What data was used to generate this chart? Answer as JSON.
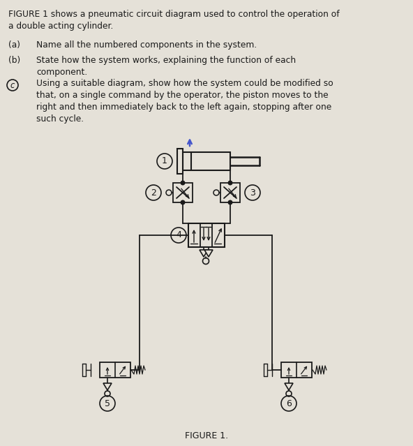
{
  "bg_color": "#e5e1d8",
  "line_color": "#1a1a1a",
  "text_color": "#1a1a1a",
  "figsize": [
    5.92,
    6.39
  ],
  "dpi": 100,
  "title": "FIGURE 1.",
  "header": "FIGURE 1 shows a pneumatic circuit diagram used to control the operation of\na double acting cylinder.",
  "qa_a_label": "(a)",
  "qa_a_text": "Name all the numbered components in the system.",
  "qa_b_label": "(b)",
  "qa_b_text": "State how the system works, explaining the function of each\ncomponent.",
  "qa_c_text": "Using a suitable diagram, show how the system could be modified so\nthat, on a single command by the operator, the piston moves to the\nright and then immediately back to the left again, stopping after one\nsuch cycle.",
  "blue_arrow_color": "#4455cc"
}
